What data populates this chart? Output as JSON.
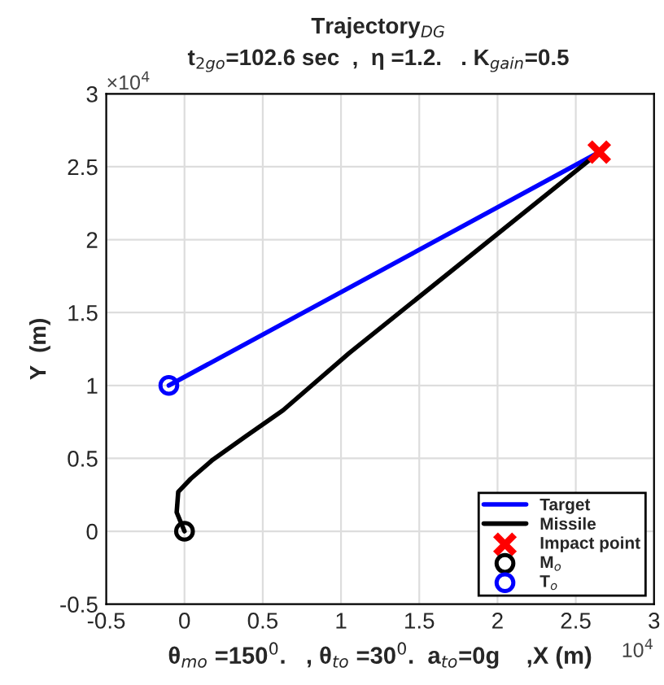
{
  "chart_data": {
    "type": "line",
    "title": "Trajectory$_{DG}$",
    "subtitle": "t$_{2go}$=102.6 sec  ,  η =1.2.   . K$_{gain}$=0.5",
    "xlabel": "θ$_{mo}$ =150$^{0}$.   , θ$_{to}$ =30$^{0}$.  a$_{to}$=0g    ,X (m)",
    "ylabel": "Y  (m)",
    "annotations": [
      "×10$^{4}$",
      "10$^{4}$"
    ],
    "series": [
      {
        "name": "Target",
        "color": "#0000ff",
        "x": [
          -0.1,
          2.65
        ],
        "values": [
          1.0,
          2.6
        ]
      },
      {
        "name": "Missile",
        "color": "#000000",
        "x": [
          0,
          -0.05,
          -0.04,
          0.04,
          0.18,
          0.39,
          0.63,
          1.05,
          2.65
        ],
        "values": [
          0,
          0.13,
          0.27,
          0.36,
          0.49,
          0.65,
          0.83,
          1.22,
          2.6
        ]
      },
      {
        "name": "Impact point",
        "type": "scatter",
        "marker": "cross",
        "color": "#ff0000",
        "x": [
          2.65
        ],
        "values": [
          2.6
        ]
      },
      {
        "name": "M$_{o}$",
        "type": "scatter",
        "marker": "circle",
        "color": "#000000",
        "x": [
          0
        ],
        "values": [
          0
        ]
      },
      {
        "name": "T$_{o}$",
        "type": "scatter",
        "marker": "circle",
        "color": "#0000ff",
        "x": [
          -0.1
        ],
        "values": [
          1.0
        ]
      }
    ],
    "xlim": [
      -0.5,
      3
    ],
    "xticks": [
      -0.5,
      0,
      0.5,
      1,
      1.5,
      2,
      2.5,
      3
    ],
    "ylim": [
      -0.5,
      3
    ],
    "yticks": [
      -0.5,
      0,
      0.5,
      1,
      1.5,
      2,
      2.5,
      3
    ],
    "grid": true,
    "legend": "bottom right"
  }
}
